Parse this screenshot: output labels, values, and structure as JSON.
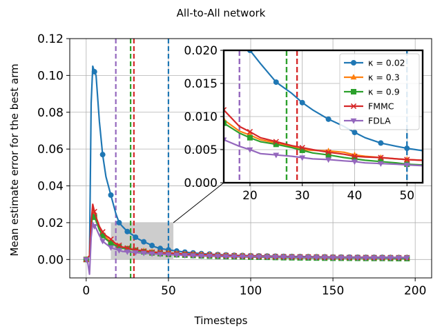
{
  "figure": {
    "title": "All-to-All network"
  },
  "chart_data": {
    "type": "line",
    "title": "All-to-All network",
    "xlabel": "Timesteps",
    "ylabel": "Mean estimate error for the best arm",
    "xlim": [
      -10,
      210
    ],
    "ylim": [
      -0.01,
      0.12
    ],
    "xticks": [
      0,
      50,
      100,
      150,
      200
    ],
    "yticks": [
      0.0,
      0.02,
      0.04,
      0.06,
      0.08,
      0.1,
      0.12
    ],
    "grid": true,
    "vlines": [
      {
        "x": 18,
        "color": "#9467bd"
      },
      {
        "x": 27,
        "color": "#2ca02c"
      },
      {
        "x": 29,
        "color": "#d62728"
      },
      {
        "x": 50,
        "color": "#1f77b4"
      }
    ],
    "shaded_region": {
      "x": [
        15,
        53
      ],
      "y": [
        0.0,
        0.02
      ],
      "color": "#c8c8c8"
    },
    "series": [
      {
        "name": "κ = 0.02",
        "color": "#1f77b4",
        "marker": "circle",
        "x": [
          0,
          2,
          3,
          4,
          5,
          6,
          8,
          10,
          12,
          15,
          18,
          20,
          22,
          25,
          28,
          30,
          32,
          35,
          38,
          40,
          42,
          45,
          48,
          50,
          55,
          60,
          70,
          80,
          90,
          100,
          110,
          120,
          130,
          140,
          150,
          160,
          170,
          180,
          190,
          195
        ],
        "y": [
          0.0,
          0.002,
          0.085,
          0.105,
          0.102,
          0.1,
          0.075,
          0.057,
          0.045,
          0.035,
          0.025,
          0.02,
          0.018,
          0.0152,
          0.0135,
          0.0121,
          0.011,
          0.0096,
          0.0085,
          0.0076,
          0.0068,
          0.006,
          0.0055,
          0.0052,
          0.0046,
          0.004,
          0.0032,
          0.0027,
          0.0023,
          0.0021,
          0.0019,
          0.0017,
          0.0016,
          0.0015,
          0.0014,
          0.0013,
          0.0012,
          0.0012,
          0.0011,
          0.0011
        ],
        "marker_x": [
          0,
          5,
          10,
          15,
          20,
          25,
          30,
          35,
          40,
          45,
          50,
          55,
          60,
          65,
          70,
          75,
          80,
          85,
          90,
          95,
          100,
          105,
          110,
          115,
          120,
          125,
          130,
          135,
          140,
          145,
          150,
          155,
          160,
          165,
          170,
          175,
          180,
          185,
          190,
          195
        ]
      },
      {
        "name": "κ = 0.3",
        "color": "#ff7f0e",
        "marker": "triangle-up",
        "x": [
          0,
          2,
          3,
          4,
          5,
          6,
          8,
          10,
          12,
          15,
          18,
          20,
          22,
          25,
          28,
          30,
          32,
          35,
          38,
          40,
          42,
          45,
          48,
          50,
          55,
          60,
          70,
          80,
          90,
          100,
          110,
          120,
          130,
          140,
          150,
          160,
          170,
          180,
          190,
          195
        ],
        "y": [
          0.0,
          0.002,
          0.018,
          0.027,
          0.024,
          0.022,
          0.017,
          0.014,
          0.012,
          0.0095,
          0.0078,
          0.0072,
          0.0065,
          0.006,
          0.0055,
          0.005,
          0.0049,
          0.0048,
          0.0046,
          0.0042,
          0.004,
          0.0038,
          0.0036,
          0.0035,
          0.0033,
          0.003,
          0.0027,
          0.0024,
          0.0021,
          0.0019,
          0.0017,
          0.0015,
          0.0014,
          0.0013,
          0.0012,
          0.0011,
          0.001,
          0.001,
          0.001,
          0.001
        ],
        "marker_x": [
          0,
          5,
          10,
          15,
          20,
          25,
          30,
          35,
          40,
          45,
          50,
          55,
          60,
          65,
          70,
          75,
          80,
          85,
          90,
          95,
          100,
          105,
          110,
          115,
          120,
          125,
          130,
          135,
          140,
          145,
          150,
          155,
          160,
          165,
          170,
          175,
          180,
          185,
          190,
          195
        ]
      },
      {
        "name": "κ = 0.9",
        "color": "#2ca02c",
        "marker": "square",
        "x": [
          0,
          2,
          3,
          4,
          5,
          6,
          8,
          10,
          12,
          15,
          18,
          20,
          22,
          25,
          28,
          30,
          32,
          35,
          38,
          40,
          42,
          45,
          48,
          50,
          55,
          60,
          70,
          80,
          90,
          100,
          110,
          120,
          130,
          140,
          150,
          160,
          170,
          180,
          190,
          195
        ],
        "y": [
          0.0,
          0.002,
          0.017,
          0.025,
          0.023,
          0.021,
          0.016,
          0.013,
          0.011,
          0.009,
          0.0075,
          0.0068,
          0.0062,
          0.0058,
          0.0053,
          0.0049,
          0.0045,
          0.0042,
          0.0038,
          0.0036,
          0.0034,
          0.0032,
          0.003,
          0.0028,
          0.0026,
          0.0024,
          0.002,
          0.0017,
          0.0015,
          0.0013,
          0.0012,
          0.001,
          0.0009,
          0.0008,
          0.0007,
          0.0007,
          0.0006,
          0.0006,
          0.0005,
          0.0005
        ],
        "marker_x": [
          0,
          5,
          10,
          15,
          20,
          25,
          30,
          35,
          40,
          45,
          50,
          55,
          60,
          65,
          70,
          75,
          80,
          85,
          90,
          95,
          100,
          105,
          110,
          115,
          120,
          125,
          130,
          135,
          140,
          145,
          150,
          155,
          160,
          165,
          170,
          175,
          180,
          185,
          190,
          195
        ]
      },
      {
        "name": "FMMC",
        "color": "#d62728",
        "marker": "x",
        "x": [
          0,
          2,
          3,
          4,
          5,
          6,
          8,
          10,
          12,
          15,
          18,
          20,
          22,
          25,
          28,
          30,
          32,
          35,
          38,
          40,
          42,
          45,
          48,
          50,
          55,
          60,
          70,
          80,
          90,
          100,
          110,
          120,
          130,
          140,
          150,
          160,
          170,
          180,
          190,
          195
        ],
        "y": [
          0.0,
          0.002,
          0.02,
          0.03,
          0.026,
          0.023,
          0.018,
          0.015,
          0.013,
          0.011,
          0.0085,
          0.0077,
          0.0068,
          0.0062,
          0.0056,
          0.0053,
          0.005,
          0.0046,
          0.0043,
          0.004,
          0.0039,
          0.0038,
          0.0036,
          0.0035,
          0.0033,
          0.003,
          0.0026,
          0.0023,
          0.002,
          0.0018,
          0.0016,
          0.0015,
          0.0014,
          0.0013,
          0.0012,
          0.0011,
          0.0011,
          0.001,
          0.001,
          0.001
        ],
        "marker_x": [
          0,
          5,
          10,
          15,
          20,
          25,
          30,
          35,
          40,
          45,
          50,
          55,
          60,
          65,
          70,
          75,
          80,
          85,
          90,
          95,
          100,
          105,
          110,
          115,
          120,
          125,
          130,
          135,
          140,
          145,
          150,
          155,
          160,
          165,
          170,
          175,
          180,
          185,
          190,
          195
        ]
      },
      {
        "name": "FDLA",
        "color": "#9467bd",
        "marker": "triangle-down",
        "x": [
          0,
          1,
          2,
          3,
          4,
          5,
          6,
          8,
          10,
          12,
          15,
          18,
          20,
          22,
          25,
          28,
          30,
          32,
          35,
          38,
          40,
          42,
          45,
          48,
          50,
          55,
          60,
          70,
          80,
          90,
          100,
          110,
          120,
          130,
          140,
          150,
          160,
          170,
          180,
          190,
          195
        ],
        "y": [
          0.0,
          -0.002,
          -0.008,
          0.012,
          0.02,
          0.018,
          0.017,
          0.013,
          0.01,
          0.0085,
          0.0065,
          0.0055,
          0.005,
          0.0044,
          0.0042,
          0.004,
          0.0038,
          0.0036,
          0.0035,
          0.0033,
          0.0032,
          0.003,
          0.0029,
          0.0028,
          0.0027,
          0.0025,
          0.0023,
          0.002,
          0.0018,
          0.0016,
          0.0015,
          0.0014,
          0.0013,
          0.0012,
          0.0011,
          0.001,
          0.001,
          0.0009,
          0.0009,
          0.0009,
          0.0009
        ],
        "marker_x": [
          0,
          5,
          10,
          15,
          20,
          25,
          30,
          35,
          40,
          45,
          50,
          55,
          60,
          65,
          70,
          75,
          80,
          85,
          90,
          95,
          100,
          105,
          110,
          115,
          120,
          125,
          130,
          135,
          140,
          145,
          150,
          155,
          160,
          165,
          170,
          175,
          180,
          185,
          190,
          195
        ]
      }
    ],
    "inset": {
      "xlim": [
        15,
        53
      ],
      "ylim": [
        0.0,
        0.02
      ],
      "xticks": [
        20,
        30,
        40,
        50
      ],
      "yticks": [
        0.0,
        0.005,
        0.01,
        0.015,
        0.02
      ],
      "ytick_labels": [
        "0.000",
        "0.005",
        "0.010",
        "0.015",
        "0.020"
      ],
      "grid": true,
      "legend_position": "top-right"
    }
  }
}
